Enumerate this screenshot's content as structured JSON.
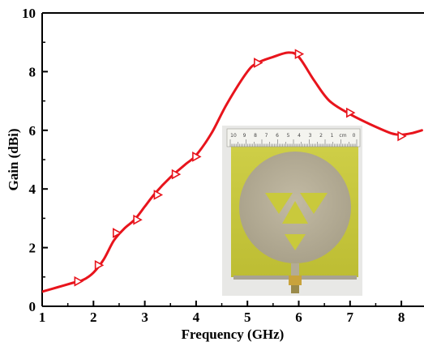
{
  "chart_data": {
    "type": "line",
    "title": "",
    "xlabel": "Frequency (GHz)",
    "ylabel": "Gain (dBi)",
    "xlim": [
      1,
      8.4
    ],
    "ylim": [
      0,
      10
    ],
    "x_ticks": [
      "1",
      "2",
      "3",
      "4",
      "5",
      "6",
      "7",
      "8"
    ],
    "y_ticks": [
      "0",
      "2",
      "4",
      "6",
      "8",
      "10"
    ],
    "grid": false,
    "line_color": "#e8141c",
    "series": [
      {
        "curve": {
          "x": [
            1.0,
            1.3,
            1.6,
            1.8,
            2.0,
            2.2,
            2.4,
            2.6,
            2.8,
            3.0,
            3.2,
            3.5,
            3.8,
            4.0,
            4.3,
            4.6,
            5.0,
            5.2,
            5.5,
            5.8,
            6.0,
            6.3,
            6.6,
            7.0,
            7.4,
            7.8,
            8.0,
            8.2,
            8.4
          ],
          "y": [
            0.5,
            0.65,
            0.8,
            0.9,
            1.15,
            1.6,
            2.25,
            2.65,
            2.95,
            3.4,
            3.85,
            4.4,
            4.85,
            5.15,
            5.9,
            6.9,
            8.0,
            8.3,
            8.5,
            8.65,
            8.5,
            7.7,
            7.0,
            6.55,
            6.2,
            5.9,
            5.85,
            5.9,
            6.0
          ]
        },
        "markers": {
          "x": [
            1.7,
            2.1,
            2.45,
            2.85,
            3.25,
            3.6,
            4.0,
            5.2,
            6.0,
            7.0,
            8.0
          ],
          "y": [
            0.85,
            1.4,
            2.5,
            2.95,
            3.8,
            4.5,
            5.1,
            8.3,
            8.6,
            6.6,
            5.8
          ]
        }
      }
    ]
  },
  "inset_photo": {
    "ruler_numbers": [
      "10",
      "9",
      "8",
      "7",
      "6",
      "5",
      "4",
      "3",
      "2",
      "1",
      "cm",
      "0"
    ],
    "board_color": "#c9c93c",
    "disc_color": "#b3ab95"
  }
}
